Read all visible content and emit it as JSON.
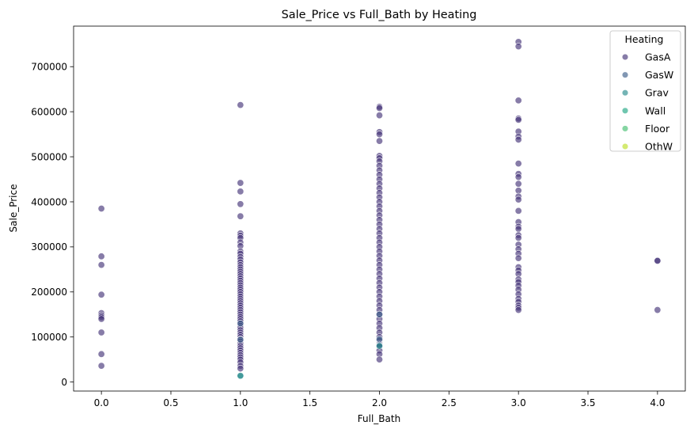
{
  "chart_data": {
    "type": "scatter",
    "title": "Sale_Price vs Full_Bath by Heating",
    "xlabel": "Full_Bath",
    "ylabel": "Sale_Price",
    "xlim": [
      -0.2,
      4.2
    ],
    "ylim": [
      -20000,
      790000
    ],
    "xticks": [
      0.0,
      0.5,
      1.0,
      1.5,
      2.0,
      2.5,
      3.0,
      3.5,
      4.0
    ],
    "xtick_labels": [
      "0.0",
      "0.5",
      "1.0",
      "1.5",
      "2.0",
      "2.5",
      "3.0",
      "3.5",
      "4.0"
    ],
    "yticks": [
      0,
      100000,
      200000,
      300000,
      400000,
      500000,
      600000,
      700000
    ],
    "ytick_labels": [
      "0",
      "100000",
      "200000",
      "300000",
      "400000",
      "500000",
      "600000",
      "700000"
    ],
    "grid": false,
    "legend": {
      "title": "Heating",
      "placement": "top-right"
    },
    "series": [
      {
        "name": "GasA",
        "color": "#47357a",
        "points": [
          [
            0,
            385000
          ],
          [
            0,
            279000
          ],
          [
            0,
            260000
          ],
          [
            0,
            194000
          ],
          [
            0,
            153000
          ],
          [
            0,
            148000
          ],
          [
            0,
            144000
          ],
          [
            0,
            140000
          ],
          [
            0,
            110000
          ],
          [
            0,
            62000
          ],
          [
            0,
            36000
          ],
          [
            1,
            615000
          ],
          [
            1,
            442000
          ],
          [
            1,
            423000
          ],
          [
            1,
            395000
          ],
          [
            1,
            368000
          ],
          [
            1,
            330000
          ],
          [
            1,
            325000
          ],
          [
            1,
            320000
          ],
          [
            1,
            310000
          ],
          [
            1,
            302000
          ],
          [
            1,
            290000
          ],
          [
            1,
            285000
          ],
          [
            1,
            278000
          ],
          [
            1,
            272000
          ],
          [
            1,
            266000
          ],
          [
            1,
            260000
          ],
          [
            1,
            255000
          ],
          [
            1,
            250000
          ],
          [
            1,
            245000
          ],
          [
            1,
            240000
          ],
          [
            1,
            235000
          ],
          [
            1,
            230000
          ],
          [
            1,
            225000
          ],
          [
            1,
            220000
          ],
          [
            1,
            215000
          ],
          [
            1,
            210000
          ],
          [
            1,
            205000
          ],
          [
            1,
            200000
          ],
          [
            1,
            195000
          ],
          [
            1,
            190000
          ],
          [
            1,
            185000
          ],
          [
            1,
            180000
          ],
          [
            1,
            175000
          ],
          [
            1,
            170000
          ],
          [
            1,
            165000
          ],
          [
            1,
            160000
          ],
          [
            1,
            155000
          ],
          [
            1,
            150000
          ],
          [
            1,
            145000
          ],
          [
            1,
            140000
          ],
          [
            1,
            135000
          ],
          [
            1,
            130000
          ],
          [
            1,
            125000
          ],
          [
            1,
            120000
          ],
          [
            1,
            115000
          ],
          [
            1,
            110000
          ],
          [
            1,
            105000
          ],
          [
            1,
            100000
          ],
          [
            1,
            95000
          ],
          [
            1,
            90000
          ],
          [
            1,
            85000
          ],
          [
            1,
            80000
          ],
          [
            1,
            75000
          ],
          [
            1,
            70000
          ],
          [
            1,
            65000
          ],
          [
            1,
            60000
          ],
          [
            1,
            55000
          ],
          [
            1,
            50000
          ],
          [
            1,
            44000
          ],
          [
            1,
            36000
          ],
          [
            1,
            30000
          ],
          [
            2,
            611000
          ],
          [
            2,
            608000
          ],
          [
            2,
            592000
          ],
          [
            2,
            555000
          ],
          [
            2,
            550000
          ],
          [
            2,
            535000
          ],
          [
            2,
            502000
          ],
          [
            2,
            497000
          ],
          [
            2,
            490000
          ],
          [
            2,
            480000
          ],
          [
            2,
            470000
          ],
          [
            2,
            460000
          ],
          [
            2,
            450000
          ],
          [
            2,
            440000
          ],
          [
            2,
            430000
          ],
          [
            2,
            420000
          ],
          [
            2,
            410000
          ],
          [
            2,
            400000
          ],
          [
            2,
            390000
          ],
          [
            2,
            380000
          ],
          [
            2,
            370000
          ],
          [
            2,
            360000
          ],
          [
            2,
            350000
          ],
          [
            2,
            340000
          ],
          [
            2,
            330000
          ],
          [
            2,
            320000
          ],
          [
            2,
            310000
          ],
          [
            2,
            300000
          ],
          [
            2,
            290000
          ],
          [
            2,
            280000
          ],
          [
            2,
            270000
          ],
          [
            2,
            260000
          ],
          [
            2,
            250000
          ],
          [
            2,
            240000
          ],
          [
            2,
            230000
          ],
          [
            2,
            220000
          ],
          [
            2,
            210000
          ],
          [
            2,
            200000
          ],
          [
            2,
            190000
          ],
          [
            2,
            180000
          ],
          [
            2,
            170000
          ],
          [
            2,
            160000
          ],
          [
            2,
            150000
          ],
          [
            2,
            140000
          ],
          [
            2,
            130000
          ],
          [
            2,
            120000
          ],
          [
            2,
            110000
          ],
          [
            2,
            100000
          ],
          [
            2,
            92000
          ],
          [
            2,
            85000
          ],
          [
            2,
            78000
          ],
          [
            2,
            70000
          ],
          [
            2,
            62000
          ],
          [
            2,
            50000
          ],
          [
            3,
            755000
          ],
          [
            3,
            745000
          ],
          [
            3,
            625000
          ],
          [
            3,
            585000
          ],
          [
            3,
            582000
          ],
          [
            3,
            556000
          ],
          [
            3,
            545000
          ],
          [
            3,
            538000
          ],
          [
            3,
            485000
          ],
          [
            3,
            462000
          ],
          [
            3,
            455000
          ],
          [
            3,
            440000
          ],
          [
            3,
            425000
          ],
          [
            3,
            412000
          ],
          [
            3,
            405000
          ],
          [
            3,
            380000
          ],
          [
            3,
            355000
          ],
          [
            3,
            345000
          ],
          [
            3,
            340000
          ],
          [
            3,
            326000
          ],
          [
            3,
            320000
          ],
          [
            3,
            305000
          ],
          [
            3,
            295000
          ],
          [
            3,
            285000
          ],
          [
            3,
            275000
          ],
          [
            3,
            255000
          ],
          [
            3,
            248000
          ],
          [
            3,
            240000
          ],
          [
            3,
            228000
          ],
          [
            3,
            222000
          ],
          [
            3,
            214000
          ],
          [
            3,
            205000
          ],
          [
            3,
            195000
          ],
          [
            3,
            185000
          ],
          [
            3,
            178000
          ],
          [
            3,
            170000
          ],
          [
            3,
            165000
          ],
          [
            3,
            160000
          ],
          [
            4,
            270000
          ],
          [
            4,
            269000
          ],
          [
            4,
            160000
          ]
        ]
      },
      {
        "name": "GasW",
        "color": "#3e5f8a",
        "points": [
          [
            1,
            130000
          ],
          [
            1,
            94000
          ],
          [
            2,
            150000
          ],
          [
            2,
            95000
          ],
          [
            2,
            82000
          ]
        ]
      },
      {
        "name": "Grav",
        "color": "#2a8c8e",
        "points": [
          [
            1,
            13000
          ],
          [
            1,
            14000
          ],
          [
            2,
            80000
          ]
        ]
      },
      {
        "name": "Wall",
        "color": "#22a884",
        "points": []
      },
      {
        "name": "Floor",
        "color": "#44bf70",
        "points": []
      },
      {
        "name": "OthW",
        "color": "#bddf26",
        "points": []
      }
    ]
  }
}
